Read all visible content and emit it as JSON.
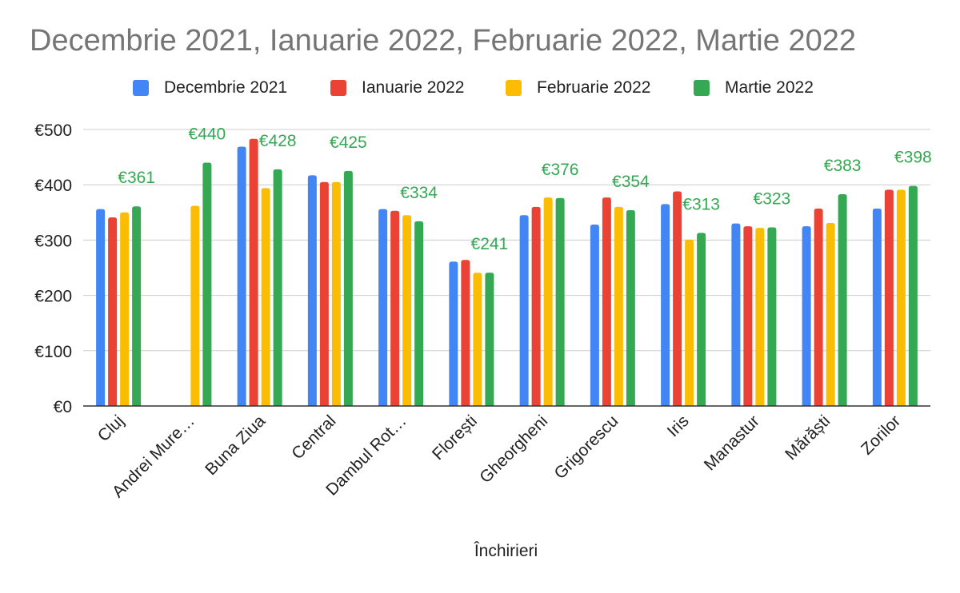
{
  "chart_data": {
    "type": "bar",
    "title": "Decembrie 2021, Ianuarie 2022, Februarie 2022, Martie 2022",
    "xlabel": "Închirieri",
    "ylabel": "",
    "ylim": [
      0,
      500
    ],
    "yticks": [
      0,
      100,
      200,
      300,
      400,
      500
    ],
    "ytick_labels": [
      "€0",
      "€100",
      "€200",
      "€300",
      "€400",
      "€500"
    ],
    "grid": true,
    "legend_position": "top",
    "categories": [
      "Cluj",
      "Andrei Mure…",
      "Buna Ziua",
      "Central",
      "Dambul Rot…",
      "Florești",
      "Gheorgheni",
      "Grigorescu",
      "Iris",
      "Manastur",
      "Mărăști",
      "Zorilor"
    ],
    "series": [
      {
        "name": "Decembrie 2021",
        "color": "#4285F4",
        "values": [
          356,
          null,
          469,
          417,
          356,
          261,
          345,
          328,
          365,
          330,
          325,
          357
        ]
      },
      {
        "name": "Ianuarie 2022",
        "color": "#EA4335",
        "values": [
          341,
          null,
          483,
          405,
          353,
          264,
          360,
          377,
          388,
          325,
          357,
          391
        ]
      },
      {
        "name": "Februarie 2022",
        "color": "#FBBC04",
        "values": [
          350,
          362,
          394,
          405,
          345,
          241,
          377,
          360,
          301,
          322,
          331,
          391
        ]
      },
      {
        "name": "Martie 2022",
        "color": "#34A853",
        "values": [
          361,
          440,
          428,
          425,
          334,
          241,
          376,
          354,
          313,
          323,
          383,
          398
        ]
      }
    ],
    "data_labels": {
      "series": "Martie 2022",
      "values": [
        "€361",
        "€440",
        "€428",
        "€425",
        "€334",
        "€241",
        "€376",
        "€354",
        "€313",
        "€323",
        "€383",
        "€398"
      ]
    }
  }
}
